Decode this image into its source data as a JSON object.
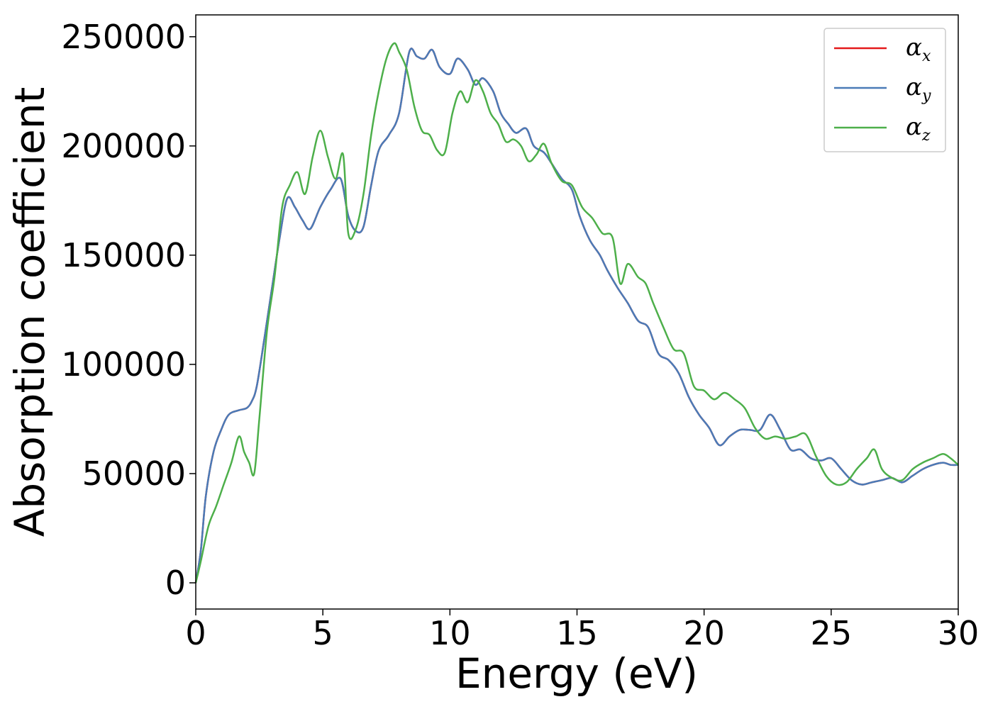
{
  "chart_data": {
    "type": "line",
    "xlabel": "Energy (eV)",
    "ylabel": "Absorption coefficient",
    "xlim": [
      0,
      30
    ],
    "ylim": [
      -12000,
      260000
    ],
    "xticks": [
      0,
      5,
      10,
      15,
      20,
      25,
      30
    ],
    "yticks": [
      0,
      50000,
      100000,
      150000,
      200000,
      250000
    ],
    "grid": false,
    "legend_position": "top-right",
    "series": [
      {
        "name": "α_x",
        "label_base": "α",
        "label_sub": "x",
        "color": "#e41a1c",
        "x": [
          0,
          0.2,
          0.4,
          0.7,
          1.0,
          1.3,
          1.7,
          2.0,
          2.2,
          2.4,
          2.7,
          3.0,
          3.3,
          3.6,
          3.9,
          4.2,
          4.5,
          4.9,
          5.3,
          5.7,
          6.0,
          6.3,
          6.6,
          6.9,
          7.2,
          7.6,
          8.0,
          8.4,
          8.7,
          9.0,
          9.3,
          9.6,
          10.0,
          10.3,
          10.7,
          11.0,
          11.3,
          11.7,
          12.0,
          12.3,
          12.6,
          13.0,
          13.3,
          13.7,
          14.0,
          14.4,
          14.8,
          15.1,
          15.5,
          15.9,
          16.2,
          16.6,
          17.0,
          17.4,
          17.8,
          18.2,
          18.6,
          19.0,
          19.4,
          19.8,
          20.2,
          20.6,
          21.0,
          21.4,
          21.8,
          22.2,
          22.6,
          23.0,
          23.4,
          23.8,
          24.2,
          24.6,
          25.0,
          25.4,
          25.8,
          26.2,
          26.6,
          27.0,
          27.4,
          27.8,
          28.2,
          28.6,
          29.0,
          29.4,
          29.7,
          30.0
        ],
        "values": [
          0,
          15000,
          40000,
          60000,
          70000,
          77000,
          79000,
          80000,
          83000,
          90000,
          112000,
          135000,
          158000,
          176000,
          172000,
          166000,
          162000,
          172000,
          180000,
          185000,
          168000,
          161000,
          163000,
          182000,
          198000,
          205000,
          215000,
          243000,
          241000,
          240000,
          244000,
          236000,
          233000,
          240000,
          235000,
          228000,
          231000,
          225000,
          215000,
          210000,
          206000,
          208000,
          200000,
          197000,
          192000,
          185000,
          180000,
          168000,
          157000,
          150000,
          143000,
          135000,
          128000,
          120000,
          117000,
          105000,
          102000,
          96000,
          85000,
          77000,
          71000,
          63000,
          67000,
          70000,
          70000,
          70000,
          77000,
          70000,
          61000,
          61000,
          57000,
          56000,
          57000,
          52000,
          47000,
          45000,
          46000,
          47000,
          48000,
          46000,
          49000,
          52000,
          54000,
          55000,
          54000,
          54000
        ]
      },
      {
        "name": "α_y",
        "label_base": "α",
        "label_sub": "y",
        "color": "#4a7bb7",
        "x": [
          0,
          0.2,
          0.4,
          0.7,
          1.0,
          1.3,
          1.7,
          2.0,
          2.2,
          2.4,
          2.7,
          3.0,
          3.3,
          3.6,
          3.9,
          4.2,
          4.5,
          4.9,
          5.3,
          5.7,
          6.0,
          6.3,
          6.6,
          6.9,
          7.2,
          7.6,
          8.0,
          8.4,
          8.7,
          9.0,
          9.3,
          9.6,
          10.0,
          10.3,
          10.7,
          11.0,
          11.3,
          11.7,
          12.0,
          12.3,
          12.6,
          13.0,
          13.3,
          13.7,
          14.0,
          14.4,
          14.8,
          15.1,
          15.5,
          15.9,
          16.2,
          16.6,
          17.0,
          17.4,
          17.8,
          18.2,
          18.6,
          19.0,
          19.4,
          19.8,
          20.2,
          20.6,
          21.0,
          21.4,
          21.8,
          22.2,
          22.6,
          23.0,
          23.4,
          23.8,
          24.2,
          24.6,
          25.0,
          25.4,
          25.8,
          26.2,
          26.6,
          27.0,
          27.4,
          27.8,
          28.2,
          28.6,
          29.0,
          29.4,
          29.7,
          30.0
        ],
        "values": [
          0,
          15000,
          40000,
          60000,
          70000,
          77000,
          79000,
          80000,
          83000,
          90000,
          112000,
          135000,
          158000,
          176000,
          172000,
          166000,
          162000,
          172000,
          180000,
          185000,
          168000,
          161000,
          163000,
          182000,
          198000,
          205000,
          215000,
          243000,
          241000,
          240000,
          244000,
          236000,
          233000,
          240000,
          235000,
          228000,
          231000,
          225000,
          215000,
          210000,
          206000,
          208000,
          200000,
          197000,
          192000,
          185000,
          180000,
          168000,
          157000,
          150000,
          143000,
          135000,
          128000,
          120000,
          117000,
          105000,
          102000,
          96000,
          85000,
          77000,
          71000,
          63000,
          67000,
          70000,
          70000,
          70000,
          77000,
          70000,
          61000,
          61000,
          57000,
          56000,
          57000,
          52000,
          47000,
          45000,
          46000,
          47000,
          48000,
          46000,
          49000,
          52000,
          54000,
          55000,
          54000,
          54000
        ]
      },
      {
        "name": "α_z",
        "label_base": "α",
        "label_sub": "z",
        "color": "#4daf4a",
        "x": [
          0,
          0.2,
          0.5,
          0.8,
          1.1,
          1.4,
          1.7,
          1.9,
          2.1,
          2.3,
          2.5,
          2.8,
          3.1,
          3.4,
          3.7,
          4.0,
          4.3,
          4.6,
          4.9,
          5.2,
          5.5,
          5.8,
          6.0,
          6.3,
          6.6,
          6.9,
          7.2,
          7.5,
          7.8,
          8.0,
          8.3,
          8.6,
          8.9,
          9.2,
          9.5,
          9.8,
          10.1,
          10.4,
          10.7,
          11.0,
          11.3,
          11.6,
          11.9,
          12.2,
          12.5,
          12.8,
          13.1,
          13.4,
          13.7,
          14.0,
          14.4,
          14.8,
          15.2,
          15.6,
          16.0,
          16.4,
          16.7,
          17.0,
          17.4,
          17.7,
          18.0,
          18.4,
          18.8,
          19.2,
          19.6,
          20.0,
          20.4,
          20.8,
          21.2,
          21.6,
          22.0,
          22.4,
          22.8,
          23.2,
          23.6,
          24.0,
          24.4,
          24.8,
          25.2,
          25.6,
          26.0,
          26.4,
          26.7,
          27.0,
          27.4,
          27.8,
          28.2,
          28.6,
          29.0,
          29.4,
          29.7,
          30.0
        ],
        "values": [
          0,
          10000,
          26000,
          35000,
          45000,
          55000,
          67000,
          60000,
          55000,
          50000,
          75000,
          115000,
          140000,
          172000,
          182000,
          188000,
          178000,
          195000,
          207000,
          195000,
          185000,
          196000,
          160000,
          162000,
          178000,
          205000,
          225000,
          240000,
          247000,
          243000,
          235000,
          218000,
          207000,
          205000,
          198000,
          197000,
          215000,
          225000,
          220000,
          230000,
          225000,
          215000,
          210000,
          202000,
          203000,
          200000,
          193000,
          196000,
          201000,
          192000,
          184000,
          182000,
          172000,
          167000,
          160000,
          158000,
          137000,
          146000,
          140000,
          137000,
          128000,
          117000,
          107000,
          105000,
          90000,
          88000,
          84000,
          87000,
          84000,
          80000,
          71000,
          66000,
          67000,
          66000,
          67000,
          68000,
          58000,
          49000,
          45000,
          46000,
          52000,
          57000,
          61000,
          52000,
          48000,
          47000,
          52000,
          55000,
          57000,
          59000,
          57000,
          54000
        ]
      }
    ]
  }
}
